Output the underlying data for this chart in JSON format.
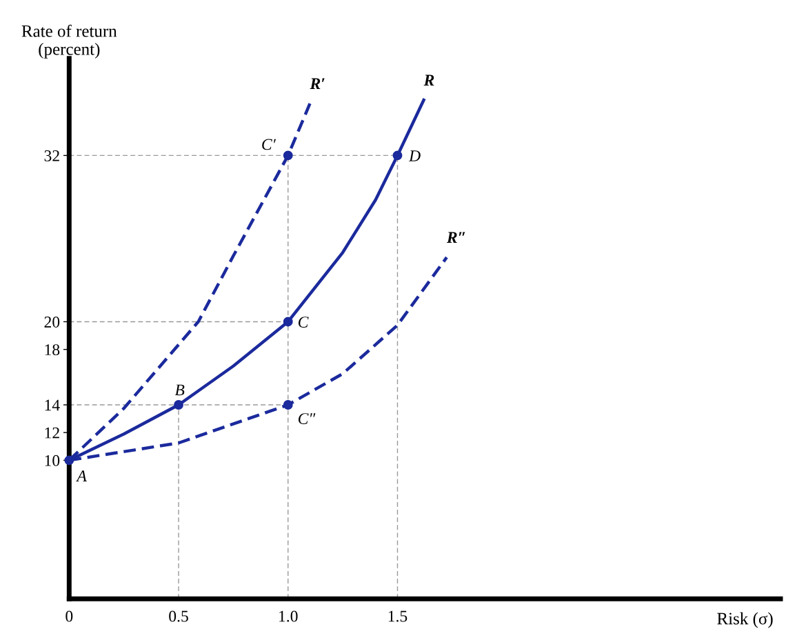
{
  "chart_data": {
    "type": "line",
    "xlabel": "Risk (σ)",
    "ylabel": "Rate of return\n(percent)",
    "xlim": [
      0,
      3.25
    ],
    "ylim": [
      0,
      39
    ],
    "xticks": [
      0,
      0.5,
      {
        "value": 1,
        "label": "1.0"
      },
      1.5
    ],
    "yticks": [
      10,
      12,
      14,
      18,
      20,
      32
    ],
    "grid": false,
    "legend": false,
    "series": [
      {
        "type": "line",
        "line_style": "dashed",
        "marker": "none",
        "color": "#999999",
        "x": [
          0,
          1.5
        ],
        "values": [
          32,
          32
        ]
      },
      {
        "type": "line",
        "line_style": "dashed",
        "marker": "none",
        "color": "#999999",
        "x": [
          0,
          1.0
        ],
        "values": [
          20,
          20
        ]
      },
      {
        "type": "line",
        "line_style": "dashed",
        "marker": "none",
        "color": "#999999",
        "x": [
          0,
          1.0
        ],
        "values": [
          14,
          14
        ]
      },
      {
        "type": "line",
        "line_style": "dashed",
        "marker": "none",
        "color": "#999999",
        "x": [
          0.5,
          0.5
        ],
        "values": [
          0,
          14
        ]
      },
      {
        "type": "line",
        "line_style": "dashed",
        "marker": "none",
        "color": "#999999",
        "x": [
          1.0,
          1.0
        ],
        "values": [
          0,
          32
        ]
      },
      {
        "type": "line",
        "line_style": "dashed",
        "marker": "none",
        "color": "#999999",
        "x": [
          1.5,
          1.5
        ],
        "values": [
          0,
          32
        ]
      },
      {
        "name": "R",
        "line_style": "solid",
        "marker": "none",
        "color": "#1b2a9c",
        "x": [
          0,
          0.25,
          0.5,
          0.75,
          1.0,
          1.25,
          1.4,
          1.5,
          1.62
        ],
        "values": [
          10,
          11.9,
          14,
          16.8,
          20,
          25,
          28.8,
          32,
          36
        ]
      },
      {
        "name": "R′",
        "line_style": "dashed",
        "marker": "none",
        "color": "#1b2a9c",
        "x": [
          0,
          0.25,
          0.59,
          0.75,
          1.0,
          1.1
        ],
        "values": [
          10,
          13.75,
          20,
          24.75,
          32,
          35.75
        ]
      },
      {
        "name": "R″",
        "line_style": "dashed",
        "marker": "none",
        "color": "#1b2a9c",
        "x": [
          0,
          0.5,
          1.0,
          1.25,
          1.5,
          1.725
        ],
        "values": [
          10,
          11.25,
          14,
          16.25,
          19.75,
          24.65
        ]
      },
      {
        "type": "scatter",
        "marker": "circle",
        "color": "#1b2a9c",
        "x": [
          0,
          0.5,
          1.0,
          1.5,
          1.0,
          1.0
        ],
        "values": [
          10,
          14,
          20,
          32,
          32,
          14
        ]
      }
    ],
    "annotations": [
      {
        "text": "A",
        "x": 0,
        "y": 10
      },
      {
        "text": "B",
        "x": 0.5,
        "y": 14
      },
      {
        "text": "C",
        "x": 1.0,
        "y": 20
      },
      {
        "text": "D",
        "x": 1.5,
        "y": 32
      },
      {
        "text": "C′",
        "x": 1.0,
        "y": 32
      },
      {
        "text": "C″",
        "x": 1.0,
        "y": 14
      }
    ]
  }
}
